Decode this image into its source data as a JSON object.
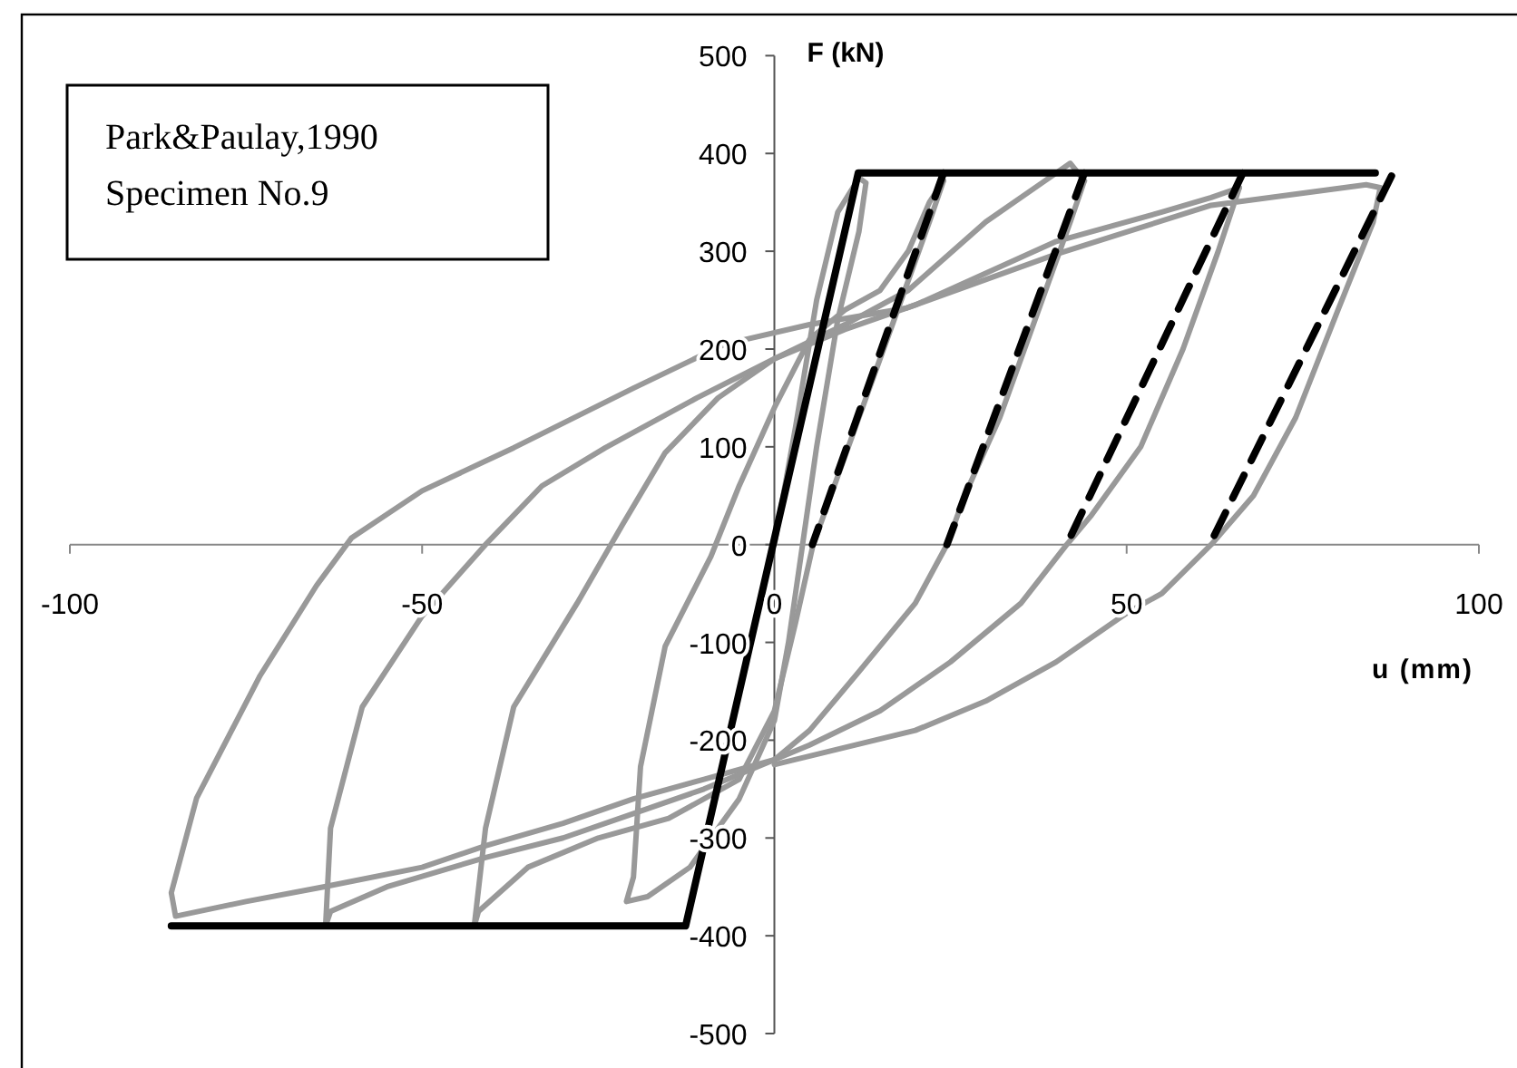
{
  "chart_data": {
    "type": "line",
    "xlabel": "u (mm)",
    "ylabel": "F (kN)",
    "annotations": [
      "Park&Paulay,1990",
      "Specimen No.9"
    ],
    "xlim": [
      -100,
      100
    ],
    "ylim": [
      -500,
      500
    ],
    "xticks": [
      -100,
      -50,
      0,
      50,
      100
    ],
    "yticks": [
      -500,
      -400,
      -300,
      -200,
      -100,
      0,
      100,
      200,
      300,
      400,
      500
    ],
    "grid": false,
    "marker": "none",
    "series": [
      {
        "color": "#999999",
        "line_style": "solid",
        "x": [
          0,
          3,
          6,
          9,
          12,
          13,
          12,
          9,
          6,
          4,
          2,
          0,
          -5,
          -12,
          -18,
          -21,
          -20,
          -19,
          -15.5,
          -9,
          -5,
          0,
          5,
          10,
          15,
          19,
          22,
          24
        ],
        "values": [
          0,
          120,
          250,
          340,
          375,
          370,
          320,
          230,
          100,
          0,
          -100,
          -180,
          -260,
          -330,
          -360,
          -365,
          -340,
          -227,
          -104,
          -12,
          60,
          140,
          210,
          240,
          260,
          300,
          350,
          372
        ]
      },
      {
        "color": "#999999",
        "line_style": "solid",
        "x": [
          24,
          22,
          17,
          12,
          8,
          5.5,
          3,
          0,
          -5,
          -15,
          -25,
          -35,
          -42,
          -42.6,
          -41,
          -37,
          -28,
          -21.6,
          -15.5,
          -8,
          0,
          10,
          19,
          30,
          38,
          42,
          44
        ],
        "values": [
          372,
          330,
          230,
          130,
          50,
          0,
          -80,
          -170,
          -240,
          -280,
          -300,
          -330,
          -375,
          -390,
          -290,
          -166,
          -60,
          20,
          94,
          150,
          190,
          225,
          260,
          330,
          370,
          390,
          372
        ]
      },
      {
        "color": "#999999",
        "line_style": "solid",
        "x": [
          44,
          42,
          37,
          32,
          27,
          24.5,
          20,
          12,
          5,
          0,
          -10,
          -20,
          -30,
          -41,
          -55,
          -63,
          -63.7,
          -63,
          -58.5,
          -50,
          -41,
          -33,
          -24,
          -11,
          0,
          10,
          20,
          40,
          55,
          62,
          66
        ],
        "values": [
          372,
          330,
          230,
          130,
          50,
          0,
          -60,
          -130,
          -190,
          -220,
          -250,
          -275,
          -300,
          -320,
          -350,
          -375,
          -390,
          -290,
          -166,
          -73,
          0,
          60,
          99,
          150,
          190,
          220,
          245,
          310,
          340,
          355,
          365
        ]
      },
      {
        "color": "#999999",
        "line_style": "solid",
        "x": [
          66,
          63,
          58,
          52,
          45,
          41.5,
          35,
          25,
          15,
          5,
          0,
          -10,
          -20,
          -30,
          -41,
          -50,
          -64,
          -75,
          -85,
          -85.6,
          -82,
          -73,
          -65,
          -60,
          -50,
          -37,
          -20,
          -7,
          5,
          18.8,
          40,
          62,
          84,
          86
        ],
        "values": [
          365,
          300,
          200,
          100,
          30,
          0,
          -60,
          -120,
          -170,
          -205,
          -220,
          -240,
          -260,
          -285,
          -308,
          -330,
          -350,
          -365,
          -380,
          -356,
          -259,
          -134,
          -42,
          7,
          55,
          99,
          160,
          205,
          225,
          242,
          297,
          347,
          368,
          365
        ]
      },
      {
        "color": "#999999",
        "line_style": "solid",
        "x": [
          86,
          85,
          80,
          74,
          68,
          62,
          55,
          50,
          40,
          30,
          20,
          0
        ],
        "values": [
          365,
          330,
          240,
          130,
          50,
          0,
          -50,
          -70,
          -120,
          -160,
          -190,
          -225
        ]
      },
      {
        "color": "#000000",
        "line_style": "solid",
        "x": [
          -85.6,
          -12.6,
          11.9,
          85.3
        ],
        "values": [
          -390,
          -390,
          380,
          380
        ]
      },
      {
        "color": "#000000",
        "line_style": "dashed",
        "x": [
          24,
          5.4
        ],
        "values": [
          380,
          0
        ]
      },
      {
        "color": "#000000",
        "line_style": "dashed",
        "x": [
          44,
          24.5
        ],
        "values": [
          380,
          0
        ]
      },
      {
        "color": "#000000",
        "line_style": "dashed",
        "x": [
          66.5,
          41.5
        ],
        "values": [
          380,
          0
        ]
      },
      {
        "color": "#000000",
        "line_style": "dashed",
        "x": [
          87.6,
          61.8
        ],
        "values": [
          377,
          0
        ]
      }
    ]
  }
}
